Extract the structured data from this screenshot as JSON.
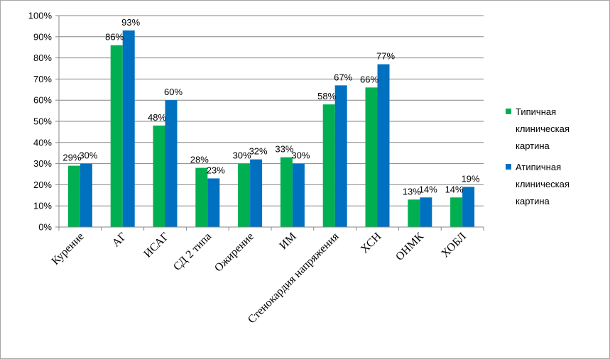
{
  "chart_data": {
    "type": "bar",
    "title": "",
    "xlabel": "",
    "ylabel": "",
    "ylim": [
      0,
      100
    ],
    "y_ticks": [
      "0%",
      "10%",
      "20%",
      "30%",
      "40%",
      "50%",
      "60%",
      "70%",
      "80%",
      "90%",
      "100%"
    ],
    "grid": true,
    "legend_position": "right",
    "categories": [
      "Курение",
      "АГ",
      "ИСАГ",
      "СД 2 типа",
      "Ожирение",
      "ИМ",
      "Стенокардия напряжения",
      "ХСН",
      "ОНМК",
      "ХОБЛ"
    ],
    "series": [
      {
        "name": "Типичная клиническая картина",
        "legend_lines": [
          "Типичная",
          "клиническая",
          "картина"
        ],
        "color": "#00b050",
        "values": [
          29,
          86,
          48,
          28,
          30,
          33,
          58,
          66,
          13,
          14
        ],
        "labels": [
          "29%",
          "86%",
          "48%",
          "28%",
          "30%",
          "33%",
          "58%",
          "66%",
          "13%",
          "14%"
        ]
      },
      {
        "name": "Атипичная клиническая картина",
        "legend_lines": [
          "Атипичная",
          "клиническая",
          "картина"
        ],
        "color": "#0070c0",
        "values": [
          30,
          93,
          60,
          23,
          32,
          30,
          67,
          77,
          14,
          19
        ],
        "labels": [
          "30%",
          "93%",
          "60%",
          "23%",
          "32%",
          "30%",
          "67%",
          "77%",
          "14%",
          "19%"
        ]
      }
    ]
  }
}
